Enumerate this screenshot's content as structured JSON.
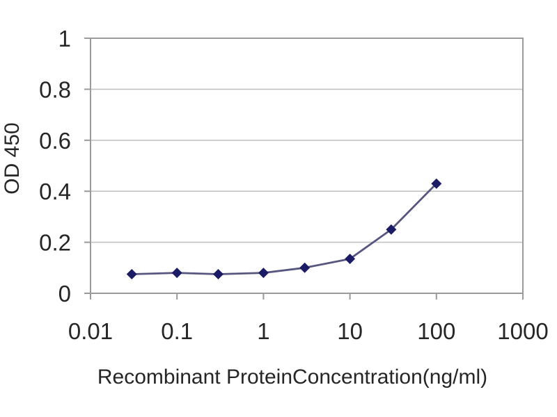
{
  "chart_data": {
    "type": "line",
    "x_scale": "log",
    "x": [
      0.03,
      0.1,
      0.3,
      1,
      3,
      10,
      30,
      100
    ],
    "y": [
      0.075,
      0.08,
      0.075,
      0.08,
      0.1,
      0.135,
      0.25,
      0.43
    ],
    "xlabel": "Recombinant ProteinConcentration(ng/ml)",
    "ylabel": "OD 450",
    "xlim": [
      0.01,
      1000
    ],
    "ylim": [
      0,
      1
    ],
    "x_tick_values": [
      0.01,
      0.1,
      1,
      10,
      100,
      1000
    ],
    "x_tick_labels": [
      "0.01",
      "0.1",
      "1",
      "10",
      "100",
      "1000"
    ],
    "y_tick_values": [
      0,
      0.2,
      0.4,
      0.6,
      0.8,
      1
    ],
    "y_tick_labels": [
      "0",
      "0.2",
      "0.4",
      "0.6",
      "0.8",
      "1"
    ],
    "grid": "horizontal",
    "legend": "none",
    "marker": "diamond",
    "colors": {
      "marker": "#1c1c66",
      "line": "#56567f",
      "grid": "#c2c2c2",
      "axis": "#9a9a9a",
      "text": "#262626",
      "background": "#ffffff"
    }
  }
}
